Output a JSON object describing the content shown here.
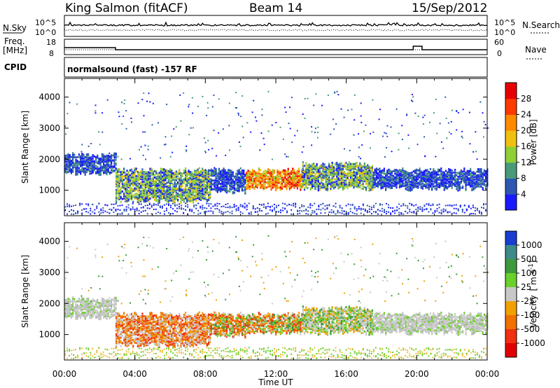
{
  "header": {
    "station": "King Salmon (fitACF)",
    "beam": "Beam 14",
    "date": "15/Sep/2012"
  },
  "params": {
    "nsky_label": "N.Sky",
    "nsky_ticks": [
      "10^5",
      "10^0"
    ],
    "nsearch_label": "N.Search",
    "nsearch_ticks": [
      "10^5",
      "10^0"
    ],
    "freq_label": "Freq.",
    "freq_unit": "[MHz]",
    "freq_ticks": [
      "18",
      "8"
    ],
    "nave_label": "Nave",
    "nave_ticks": [
      "60",
      "0"
    ],
    "cpid_label": "CPID",
    "cpid_text": "normalsound (fast) -157 RF"
  },
  "chart_data": [
    {
      "type": "heatmap",
      "panel": "power",
      "xlabel": "",
      "ylabel": "Slant Range [km]",
      "xlim": [
        0,
        24
      ],
      "ylim": [
        180,
        4600
      ],
      "yticks": [
        "1000",
        "2000",
        "3000",
        "4000"
      ],
      "colorbar_label": "Power [dB]",
      "colorbar_ticks": [
        "4",
        "8",
        "12",
        "16",
        "20",
        "24",
        "28"
      ],
      "colorbar_colors": [
        "#1a1aff",
        "#2d57b3",
        "#4a9a7a",
        "#8ed036",
        "#f0c010",
        "#ff8a00",
        "#ff3a00",
        "#e80000"
      ],
      "echo_bands": [
        {
          "t0": 0.0,
          "t1": 2.9,
          "r0": 1600,
          "r1": 2200,
          "level": "low"
        },
        {
          "t0": 2.9,
          "t1": 8.3,
          "r0": 700,
          "r1": 1700,
          "level": "mid"
        },
        {
          "t0": 8.3,
          "t1": 10.3,
          "r0": 1000,
          "r1": 1700,
          "level": "low"
        },
        {
          "t0": 10.3,
          "t1": 13.5,
          "r0": 1100,
          "r1": 1700,
          "level": "high"
        },
        {
          "t0": 13.5,
          "t1": 17.5,
          "r0": 1100,
          "r1": 1900,
          "level": "mid"
        },
        {
          "t0": 17.5,
          "t1": 24.0,
          "r0": 1100,
          "r1": 1700,
          "level": "low"
        }
      ]
    },
    {
      "type": "heatmap",
      "panel": "velocity",
      "xlabel": "Time UT",
      "ylabel": "Slant Range [km]",
      "xlim": [
        0,
        24
      ],
      "ylim": [
        180,
        4600
      ],
      "xticks": [
        "00:00",
        "04:00",
        "08:00",
        "12:00",
        "16:00",
        "20:00",
        "00:00"
      ],
      "yticks": [
        "1000",
        "2000",
        "3000",
        "4000"
      ],
      "colorbar_label": "Velocity [m s-1]",
      "colorbar_label_main": "Velocity",
      "colorbar_label_unit": "[ m s",
      "colorbar_label_exp": "-1",
      "colorbar_label_close": "]",
      "colorbar_ticks": [
        "1000",
        "500",
        "100",
        "25",
        "-25",
        "-100",
        "-500",
        "-1000"
      ],
      "colorbar_colors": [
        "#1a3cd0",
        "#3c8a8a",
        "#3c9a3c",
        "#6ad02a",
        "#c8c8c8",
        "#f0a000",
        "#f07000",
        "#f03010",
        "#e00000"
      ]
    }
  ]
}
